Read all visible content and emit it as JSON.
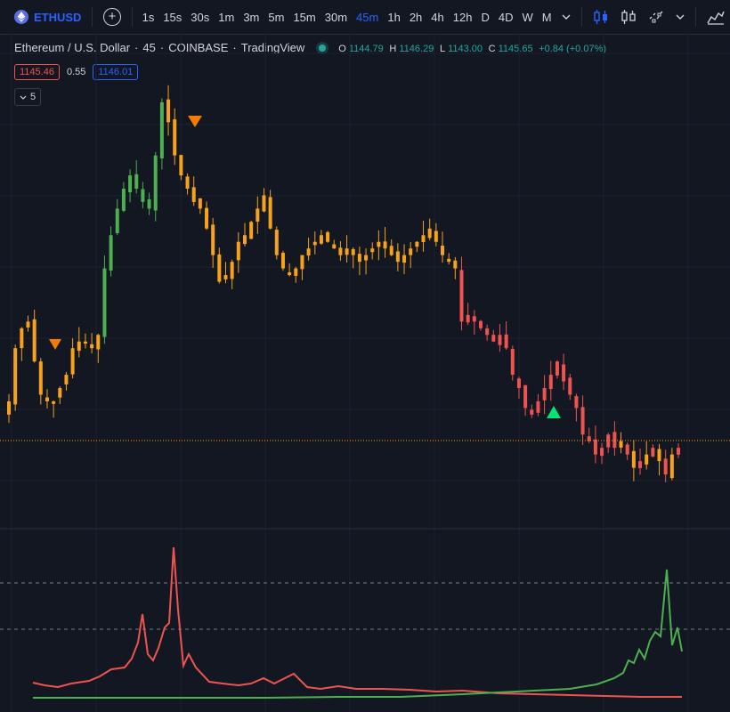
{
  "toolbar": {
    "symbol": "ETHUSD",
    "intervals": [
      "1s",
      "15s",
      "30s",
      "1m",
      "3m",
      "5m",
      "15m",
      "30m",
      "45m",
      "1h",
      "2h",
      "4h",
      "12h",
      "D",
      "4D",
      "W",
      "M"
    ],
    "active_interval": "45m",
    "icons": [
      "plus-circle-icon",
      "candles-icon",
      "bars-icon",
      "indicators-icon",
      "templates-icon",
      "alert-icon"
    ]
  },
  "legend": {
    "title": "Ethereum / U.S. Dollar",
    "interval": "45",
    "exchange": "COINBASE",
    "source": "TradingView",
    "open_label": "O",
    "open": "1144.79",
    "high_label": "H",
    "high": "1146.29",
    "low_label": "L",
    "low": "1143.00",
    "close_label": "C",
    "close": "1145.65",
    "change": "+0.84 (+0.07%)"
  },
  "price_boxes": {
    "bid": "1145.46",
    "spread": "0.55",
    "ask": "1146.01"
  },
  "collapse": {
    "count": "5"
  },
  "colors": {
    "bg": "#131722",
    "orange": "#f7a21a",
    "red": "#ef5350",
    "green": "#26a69a",
    "candle_green": "#4caf50",
    "blue": "#2962ff"
  },
  "chart_data": {
    "type": "candlestick",
    "candles_close_path": [
      1138,
      1146,
      1149,
      1150,
      1144,
      1139,
      1138,
      1138,
      1140,
      1142,
      1146,
      1147,
      1147,
      1146,
      1148,
      1158,
      1163,
      1167,
      1170,
      1172,
      1170,
      1168,
      1167,
      1175,
      1183,
      1180,
      1175,
      1172,
      1170,
      1168,
      1167,
      1164,
      1160,
      1156,
      1157,
      1159,
      1162,
      1163,
      1165,
      1167,
      1169,
      1164,
      1160,
      1158,
      1157,
      1158,
      1160,
      1161,
      1162,
      1163,
      1162,
      1161,
      1160,
      1161,
      1160,
      1159,
      1160,
      1161,
      1162,
      1161,
      1160,
      1159,
      1160,
      1161,
      1162,
      1163,
      1164,
      1162,
      1160,
      1159,
      1158,
      1150,
      1151,
      1150,
      1149,
      1148,
      1147,
      1148,
      1146,
      1142,
      1140,
      1137,
      1136,
      1138,
      1140,
      1142,
      1144,
      1141,
      1139,
      1137,
      1133,
      1132,
      1130,
      1131,
      1133,
      1131,
      1132,
      1130,
      1128,
      1129,
      1130,
      1131,
      1129,
      1127,
      1130,
      1131
    ],
    "markers": [
      {
        "type": "sell",
        "color": "#f57c00"
      },
      {
        "type": "sell",
        "color": "#f57c00"
      },
      {
        "type": "buy",
        "color": "#00e676"
      }
    ],
    "current_price": 1145.65,
    "oscillator": {
      "upper_level": "dashed",
      "lower_level": "dashed",
      "series": [
        "red",
        "green"
      ]
    }
  }
}
